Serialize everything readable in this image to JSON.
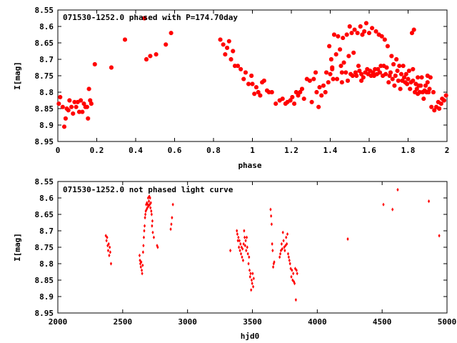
{
  "chart_data": [
    {
      "type": "scatter",
      "title": "071530-1252.0 phased with P=174.70day",
      "xlabel": "phase",
      "ylabel": "I[mag]",
      "xlim": [
        0,
        2
      ],
      "ylim": [
        8.55,
        8.95
      ],
      "y_inverted": true,
      "grid": false,
      "color": "#ff0000",
      "marker": "star",
      "xticks": [
        "0",
        "0.2",
        "0.4",
        "0.6",
        "0.8",
        "1",
        "1.2",
        "1.4",
        "1.6",
        "1.8",
        "2"
      ],
      "xtick_values": [
        0,
        0.2,
        0.4,
        0.6,
        0.8,
        1,
        1.2,
        1.4,
        1.6,
        1.8,
        2
      ],
      "yticks": [
        "8.55",
        "8.6",
        "8.65",
        "8.7",
        "8.75",
        "8.8",
        "8.85",
        "8.9",
        "8.95"
      ],
      "ytick_values": [
        8.55,
        8.6,
        8.65,
        8.7,
        8.75,
        8.8,
        8.85,
        8.9,
        8.95
      ],
      "points": [
        [
          0.005,
          8.835
        ],
        [
          0.012,
          8.815
        ],
        [
          0.025,
          8.845
        ],
        [
          0.033,
          8.905
        ],
        [
          0.04,
          8.88
        ],
        [
          0.046,
          8.85
        ],
        [
          0.054,
          8.855
        ],
        [
          0.06,
          8.825
        ],
        [
          0.07,
          8.845
        ],
        [
          0.078,
          8.865
        ],
        [
          0.086,
          8.83
        ],
        [
          0.094,
          8.845
        ],
        [
          0.102,
          8.83
        ],
        [
          0.11,
          8.86
        ],
        [
          0.118,
          8.825
        ],
        [
          0.126,
          8.86
        ],
        [
          0.134,
          8.835
        ],
        [
          0.142,
          8.845
        ],
        [
          0.15,
          8.845
        ],
        [
          0.155,
          8.88
        ],
        [
          0.16,
          8.79
        ],
        [
          0.166,
          8.825
        ],
        [
          0.172,
          8.835
        ],
        [
          0.19,
          8.715
        ],
        [
          0.275,
          8.725
        ],
        [
          0.345,
          8.64
        ],
        [
          0.445,
          8.575
        ],
        [
          0.455,
          8.7
        ],
        [
          0.475,
          8.69
        ],
        [
          0.505,
          8.685
        ],
        [
          0.555,
          8.655
        ],
        [
          0.582,
          8.62
        ],
        [
          0.835,
          8.64
        ],
        [
          0.85,
          8.655
        ],
        [
          0.86,
          8.685
        ],
        [
          0.87,
          8.665
        ],
        [
          0.88,
          8.645
        ],
        [
          0.89,
          8.7
        ],
        [
          0.9,
          8.675
        ],
        [
          0.91,
          8.72
        ],
        [
          0.925,
          8.72
        ],
        [
          0.94,
          8.73
        ],
        [
          0.955,
          8.76
        ],
        [
          0.965,
          8.74
        ],
        [
          0.98,
          8.775
        ],
        [
          0.995,
          8.75
        ],
        [
          1.0,
          8.775
        ],
        [
          1.01,
          8.805
        ],
        [
          1.02,
          8.785
        ],
        [
          1.03,
          8.8
        ],
        [
          1.04,
          8.81
        ],
        [
          1.05,
          8.77
        ],
        [
          1.06,
          8.765
        ],
        [
          1.075,
          8.795
        ],
        [
          1.085,
          8.8
        ],
        [
          1.1,
          8.8
        ],
        [
          1.12,
          8.835
        ],
        [
          1.14,
          8.825
        ],
        [
          1.155,
          8.82
        ],
        [
          1.17,
          8.835
        ],
        [
          1.18,
          8.83
        ],
        [
          1.195,
          8.825
        ],
        [
          1.205,
          8.815
        ],
        [
          1.215,
          8.835
        ],
        [
          1.225,
          8.8
        ],
        [
          1.235,
          8.81
        ],
        [
          1.245,
          8.8
        ],
        [
          1.255,
          8.79
        ],
        [
          1.265,
          8.82
        ],
        [
          1.28,
          8.76
        ],
        [
          1.295,
          8.765
        ],
        [
          1.305,
          8.83
        ],
        [
          1.315,
          8.76
        ],
        [
          1.325,
          8.74
        ],
        [
          1.33,
          8.8
        ],
        [
          1.34,
          8.845
        ],
        [
          1.345,
          8.785
        ],
        [
          1.355,
          8.81
        ],
        [
          1.365,
          8.78
        ],
        [
          1.375,
          8.8
        ],
        [
          1.38,
          8.74
        ],
        [
          1.39,
          8.77
        ],
        [
          1.395,
          8.66
        ],
        [
          1.4,
          8.745
        ],
        [
          1.405,
          8.7
        ],
        [
          1.41,
          8.73
        ],
        [
          1.415,
          8.76
        ],
        [
          1.42,
          8.625
        ],
        [
          1.43,
          8.685
        ],
        [
          1.435,
          8.76
        ],
        [
          1.44,
          8.63
        ],
        [
          1.45,
          8.67
        ],
        [
          1.455,
          8.72
        ],
        [
          1.46,
          8.77
        ],
        [
          1.465,
          8.635
        ],
        [
          1.47,
          8.71
        ],
        [
          1.48,
          8.74
        ],
        [
          1.485,
          8.625
        ],
        [
          1.49,
          8.765
        ],
        [
          1.495,
          8.69
        ],
        [
          1.5,
          8.6
        ],
        [
          1.505,
          8.745
        ],
        [
          1.51,
          8.62
        ],
        [
          1.515,
          8.75
        ],
        [
          1.52,
          8.68
        ],
        [
          1.525,
          8.61
        ],
        [
          1.53,
          8.74
        ],
        [
          1.535,
          8.75
        ],
        [
          1.54,
          8.62
        ],
        [
          1.545,
          8.72
        ],
        [
          1.55,
          8.735
        ],
        [
          1.555,
          8.6
        ],
        [
          1.56,
          8.745
        ],
        [
          1.565,
          8.625
        ],
        [
          1.57,
          8.755
        ],
        [
          1.575,
          8.615
        ],
        [
          1.58,
          8.74
        ],
        [
          1.585,
          8.59
        ],
        [
          1.59,
          8.73
        ],
        [
          1.595,
          8.745
        ],
        [
          1.6,
          8.62
        ],
        [
          1.605,
          8.735
        ],
        [
          1.61,
          8.75
        ],
        [
          1.615,
          8.605
        ],
        [
          1.62,
          8.74
        ],
        [
          1.625,
          8.75
        ],
        [
          1.63,
          8.73
        ],
        [
          1.635,
          8.615
        ],
        [
          1.64,
          8.745
        ],
        [
          1.645,
          8.73
        ],
        [
          1.65,
          8.625
        ],
        [
          1.655,
          8.74
        ],
        [
          1.66,
          8.72
        ],
        [
          1.665,
          8.63
        ],
        [
          1.67,
          8.75
        ],
        [
          1.675,
          8.72
        ],
        [
          1.68,
          8.64
        ],
        [
          1.685,
          8.745
        ],
        [
          1.69,
          8.725
        ],
        [
          1.695,
          8.66
        ],
        [
          1.7,
          8.77
        ],
        [
          1.71,
          8.74
        ],
        [
          1.715,
          8.69
        ],
        [
          1.72,
          8.76
        ],
        [
          1.725,
          8.715
        ],
        [
          1.73,
          8.78
        ],
        [
          1.735,
          8.75
        ],
        [
          1.74,
          8.7
        ],
        [
          1.745,
          8.735
        ],
        [
          1.75,
          8.765
        ],
        [
          1.755,
          8.72
        ],
        [
          1.76,
          8.79
        ],
        [
          1.765,
          8.745
        ],
        [
          1.77,
          8.765
        ],
        [
          1.775,
          8.72
        ],
        [
          1.78,
          8.755
        ],
        [
          1.785,
          8.77
        ],
        [
          1.79,
          8.745
        ],
        [
          1.795,
          8.775
        ],
        [
          1.8,
          8.76
        ],
        [
          1.805,
          8.735
        ],
        [
          1.81,
          8.79
        ],
        [
          1.815,
          8.77
        ],
        [
          1.82,
          8.62
        ],
        [
          1.825,
          8.765
        ],
        [
          1.83,
          8.61
        ],
        [
          1.835,
          8.8
        ],
        [
          1.84,
          8.775
        ],
        [
          1.845,
          8.79
        ],
        [
          1.85,
          8.805
        ],
        [
          1.855,
          8.78
        ],
        [
          1.86,
          8.8
        ],
        [
          1.865,
          8.78
        ],
        [
          1.87,
          8.755
        ],
        [
          1.875,
          8.8
        ],
        [
          1.88,
          8.82
        ],
        [
          1.885,
          8.795
        ],
        [
          1.89,
          8.78
        ],
        [
          1.895,
          8.8
        ],
        [
          1.9,
          8.77
        ],
        [
          1.905,
          8.8
        ],
        [
          1.91,
          8.79
        ],
        [
          1.92,
          8.845
        ],
        [
          1.93,
          8.8
        ],
        [
          1.935,
          8.855
        ],
        [
          1.945,
          8.845
        ],
        [
          1.955,
          8.83
        ],
        [
          1.96,
          8.85
        ],
        [
          1.97,
          8.835
        ],
        [
          1.975,
          8.82
        ],
        [
          1.985,
          8.825
        ],
        [
          1.995,
          8.81
        ],
        [
          1.9,
          8.75
        ],
        [
          1.915,
          8.755
        ],
        [
          1.85,
          8.755
        ],
        [
          1.825,
          8.73
        ],
        [
          1.705,
          8.75
        ],
        [
          1.56,
          8.765
        ],
        [
          1.46,
          8.74
        ],
        [
          1.41,
          8.725
        ]
      ]
    },
    {
      "type": "scatter",
      "title": "071530-1252.0 not phased light curve",
      "xlabel": "hjd0",
      "ylabel": "I[mag]",
      "xlim": [
        2000,
        5000
      ],
      "ylim": [
        8.55,
        8.95
      ],
      "y_inverted": true,
      "grid": false,
      "color": "#ff0000",
      "marker": "diamond",
      "xticks": [
        "2000",
        "2500",
        "3000",
        "3500",
        "4000",
        "4500",
        "5000"
      ],
      "xtick_values": [
        2000,
        2500,
        3000,
        3500,
        4000,
        4500,
        5000
      ],
      "yticks": [
        "8.55",
        "8.6",
        "8.65",
        "8.7",
        "8.75",
        "8.8",
        "8.85",
        "8.9",
        "8.95"
      ],
      "ytick_values": [
        8.55,
        8.6,
        8.65,
        8.7,
        8.75,
        8.8,
        8.85,
        8.9,
        8.95
      ],
      "points": [
        [
          2370,
          8.715
        ],
        [
          2375,
          8.73
        ],
        [
          2380,
          8.72
        ],
        [
          2384,
          8.745
        ],
        [
          2388,
          8.76
        ],
        [
          2392,
          8.74
        ],
        [
          2396,
          8.775
        ],
        [
          2400,
          8.75
        ],
        [
          2404,
          8.765
        ],
        [
          2410,
          8.8
        ],
        [
          2630,
          8.775
        ],
        [
          2633,
          8.79
        ],
        [
          2636,
          8.8
        ],
        [
          2640,
          8.81
        ],
        [
          2643,
          8.795
        ],
        [
          2647,
          8.82
        ],
        [
          2650,
          8.83
        ],
        [
          2654,
          8.805
        ],
        [
          2657,
          8.765
        ],
        [
          2660,
          8.745
        ],
        [
          2663,
          8.72
        ],
        [
          2666,
          8.7
        ],
        [
          2669,
          8.685
        ],
        [
          2672,
          8.66
        ],
        [
          2675,
          8.65
        ],
        [
          2678,
          8.64
        ],
        [
          2681,
          8.62
        ],
        [
          2684,
          8.635
        ],
        [
          2687,
          8.615
        ],
        [
          2690,
          8.63
        ],
        [
          2693,
          8.62
        ],
        [
          2696,
          8.6
        ],
        [
          2699,
          8.625
        ],
        [
          2702,
          8.61
        ],
        [
          2705,
          8.595
        ],
        [
          2708,
          8.62
        ],
        [
          2711,
          8.6
        ],
        [
          2714,
          8.63
        ],
        [
          2717,
          8.615
        ],
        [
          2720,
          8.64
        ],
        [
          2723,
          8.65
        ],
        [
          2726,
          8.685
        ],
        [
          2729,
          8.67
        ],
        [
          2732,
          8.705
        ],
        [
          2740,
          8.72
        ],
        [
          2765,
          8.745
        ],
        [
          2770,
          8.75
        ],
        [
          2870,
          8.695
        ],
        [
          2875,
          8.68
        ],
        [
          2880,
          8.66
        ],
        [
          2887,
          8.62
        ],
        [
          3330,
          8.76
        ],
        [
          3380,
          8.7
        ],
        [
          3384,
          8.71
        ],
        [
          3388,
          8.73
        ],
        [
          3392,
          8.72
        ],
        [
          3396,
          8.75
        ],
        [
          3400,
          8.73
        ],
        [
          3404,
          8.76
        ],
        [
          3408,
          8.74
        ],
        [
          3412,
          8.77
        ],
        [
          3416,
          8.75
        ],
        [
          3420,
          8.78
        ],
        [
          3424,
          8.755
        ],
        [
          3428,
          8.79
        ],
        [
          3432,
          8.74
        ],
        [
          3436,
          8.7
        ],
        [
          3440,
          8.72
        ],
        [
          3444,
          8.745
        ],
        [
          3448,
          8.73
        ],
        [
          3452,
          8.76
        ],
        [
          3456,
          8.72
        ],
        [
          3460,
          8.75
        ],
        [
          3465,
          8.77
        ],
        [
          3470,
          8.8
        ],
        [
          3474,
          8.78
        ],
        [
          3478,
          8.82
        ],
        [
          3482,
          8.84
        ],
        [
          3486,
          8.83
        ],
        [
          3490,
          8.88
        ],
        [
          3494,
          8.85
        ],
        [
          3498,
          8.86
        ],
        [
          3502,
          8.83
        ],
        [
          3506,
          8.87
        ],
        [
          3510,
          8.845
        ],
        [
          3640,
          8.635
        ],
        [
          3644,
          8.655
        ],
        [
          3648,
          8.68
        ],
        [
          3652,
          8.74
        ],
        [
          3656,
          8.76
        ],
        [
          3660,
          8.81
        ],
        [
          3664,
          8.8
        ],
        [
          3668,
          8.795
        ],
        [
          3710,
          8.78
        ],
        [
          3715,
          8.77
        ],
        [
          3720,
          8.76
        ],
        [
          3725,
          8.74
        ],
        [
          3730,
          8.755
        ],
        [
          3735,
          8.705
        ],
        [
          3740,
          8.73
        ],
        [
          3745,
          8.75
        ],
        [
          3750,
          8.76
        ],
        [
          3755,
          8.745
        ],
        [
          3760,
          8.72
        ],
        [
          3765,
          8.74
        ],
        [
          3770,
          8.71
        ],
        [
          3775,
          8.77
        ],
        [
          3780,
          8.78
        ],
        [
          3785,
          8.79
        ],
        [
          3790,
          8.8
        ],
        [
          3795,
          8.815
        ],
        [
          3800,
          8.84
        ],
        [
          3805,
          8.82
        ],
        [
          3810,
          8.85
        ],
        [
          3815,
          8.83
        ],
        [
          3820,
          8.855
        ],
        [
          3825,
          8.86
        ],
        [
          3830,
          8.815
        ],
        [
          3835,
          8.91
        ],
        [
          3840,
          8.82
        ],
        [
          3845,
          8.83
        ],
        [
          4235,
          8.725
        ],
        [
          4510,
          8.62
        ],
        [
          4580,
          8.635
        ],
        [
          4620,
          8.575
        ],
        [
          4860,
          8.61
        ],
        [
          4940,
          8.715
        ]
      ]
    }
  ]
}
